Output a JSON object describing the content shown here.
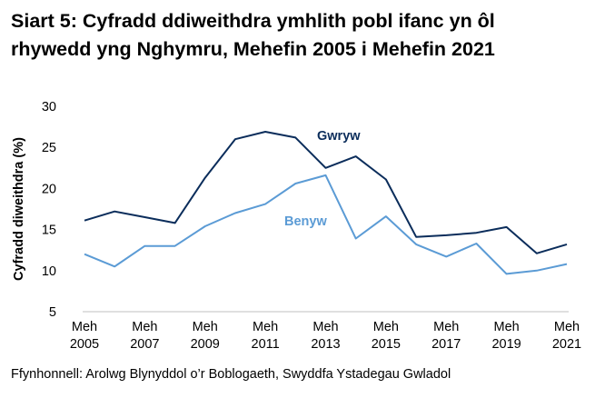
{
  "title_lines": [
    "Siart 5: Cyfradd ddiweithdra ymhlith pobl ifanc yn ôl",
    "rhywedd yng Nghymru, Mehefin 2005 i Mehefin 2021"
  ],
  "source": "Ffynhonnell: Arolwg Blynyddol o’r Boblogaeth, Swyddfa Ystadegau Gwladol",
  "chart_data": {
    "type": "line",
    "title": "Siart 5: Cyfradd ddiweithdra ymhlith pobl ifanc yn ôl rhywedd yng Nghymru, Mehefin 2005 i Mehefin 2021",
    "ylabel": "Cyfradd diweithdra (%)",
    "xlabel": "",
    "x": [
      2005,
      2006,
      2007,
      2008,
      2009,
      2010,
      2011,
      2012,
      2013,
      2014,
      2015,
      2016,
      2017,
      2018,
      2019,
      2020,
      2021
    ],
    "x_ticks": [
      {
        "year": 2005,
        "label": [
          "Meh",
          "2005"
        ]
      },
      {
        "year": 2007,
        "label": [
          "Meh",
          "2007"
        ]
      },
      {
        "year": 2009,
        "label": [
          "Meh",
          "2009"
        ]
      },
      {
        "year": 2011,
        "label": [
          "Meh",
          "2011"
        ]
      },
      {
        "year": 2013,
        "label": [
          "Meh",
          "2013"
        ]
      },
      {
        "year": 2015,
        "label": [
          "Meh",
          "2015"
        ]
      },
      {
        "year": 2017,
        "label": [
          "Meh",
          "2017"
        ]
      },
      {
        "year": 2019,
        "label": [
          "Meh",
          "2019"
        ]
      },
      {
        "year": 2021,
        "label": [
          "Meh",
          "2021"
        ]
      }
    ],
    "ylim": [
      5,
      30
    ],
    "yticks": [
      5,
      10,
      15,
      20,
      25,
      30
    ],
    "grid": false,
    "series": [
      {
        "name": "Gwryw",
        "color": "#0b2d5b",
        "values": [
          16.1,
          17.2,
          16.5,
          15.8,
          21.3,
          26.0,
          26.9,
          26.2,
          22.5,
          23.9,
          21.1,
          14.1,
          14.3,
          14.6,
          15.3,
          12.1,
          13.2
        ]
      },
      {
        "name": "Benyw",
        "color": "#5b9bd5",
        "values": [
          12.0,
          10.5,
          13.0,
          13.0,
          15.4,
          17.0,
          18.1,
          20.6,
          21.6,
          13.9,
          16.6,
          13.2,
          11.7,
          13.3,
          9.6,
          10.0,
          10.8
        ]
      }
    ]
  }
}
